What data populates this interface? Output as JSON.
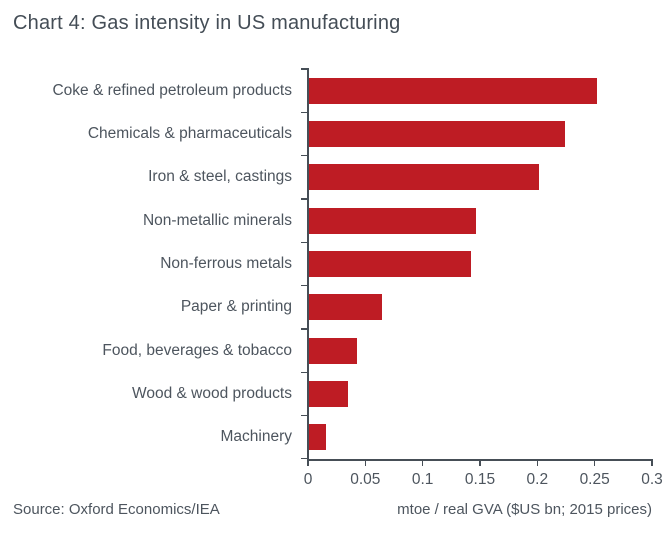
{
  "title": "Chart 4: Gas intensity in US manufacturing",
  "source": "Source: Oxford Economics/IEA",
  "colors": {
    "bar": "#be1c24",
    "axis": "#464e56",
    "title_text": "#444d56",
    "label_text": "#4d555e"
  },
  "chart_data": {
    "type": "bar",
    "orientation": "horizontal",
    "title": "Chart 4: Gas intensity in US manufacturing",
    "categories": [
      "Coke & refined petroleum products",
      "Chemicals & pharmaceuticals",
      "Iron & steel, castings",
      "Non-metallic minerals",
      "Non-ferrous metals",
      "Paper & printing",
      "Food, beverages & tobacco",
      "Wood & wood products",
      "Machinery"
    ],
    "values": [
      0.251,
      0.223,
      0.201,
      0.146,
      0.141,
      0.064,
      0.042,
      0.034,
      0.015
    ],
    "xlabel": "mtoe / real GVA ($US bn; 2015 prices)",
    "ylabel": "",
    "xlim": [
      0,
      0.3
    ],
    "xticks": [
      0,
      0.05,
      0.1,
      0.15,
      0.2,
      0.25,
      0.3
    ],
    "xtick_labels": [
      "0",
      "0.05",
      "0.1",
      "0.15",
      "0.2",
      "0.25",
      "0.3"
    ],
    "grid": false,
    "legend": "none",
    "bar_color": "#be1c24"
  }
}
